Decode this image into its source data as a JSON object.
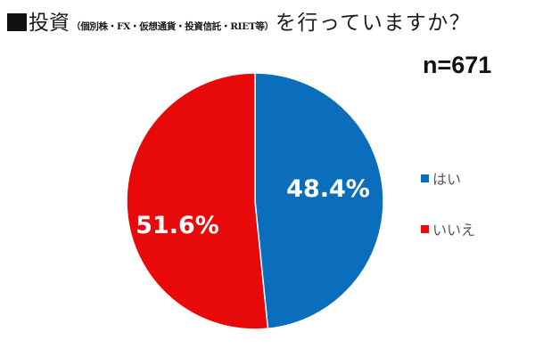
{
  "title": {
    "marker": "■",
    "main": "投資",
    "sub": "（個別株・FX・仮想通貨・投資信託・RIET等）",
    "rest": "を行っていますか？"
  },
  "sample_size": "n=671",
  "legend": [
    {
      "label": "はい",
      "color": "#0a6ebd"
    },
    {
      "label": "いいえ",
      "color": "#e80a0a"
    }
  ],
  "labels": {
    "yes_pct": "48.4%",
    "no_pct": "51.6%"
  },
  "chart_data": {
    "type": "pie",
    "title": "■投資（個別株・FX・仮想通貨・投資信託・RIET等）を行っていますか？",
    "annotation": "n=671",
    "categories": [
      "はい",
      "いいえ"
    ],
    "values": [
      48.4,
      51.6
    ],
    "unit": "%",
    "colors": [
      "#0a6ebd",
      "#e80a0a"
    ],
    "start_angle": "12 o'clock, clockwise",
    "legend_position": "right",
    "data_labels": [
      "48.4%",
      "51.6%"
    ]
  }
}
